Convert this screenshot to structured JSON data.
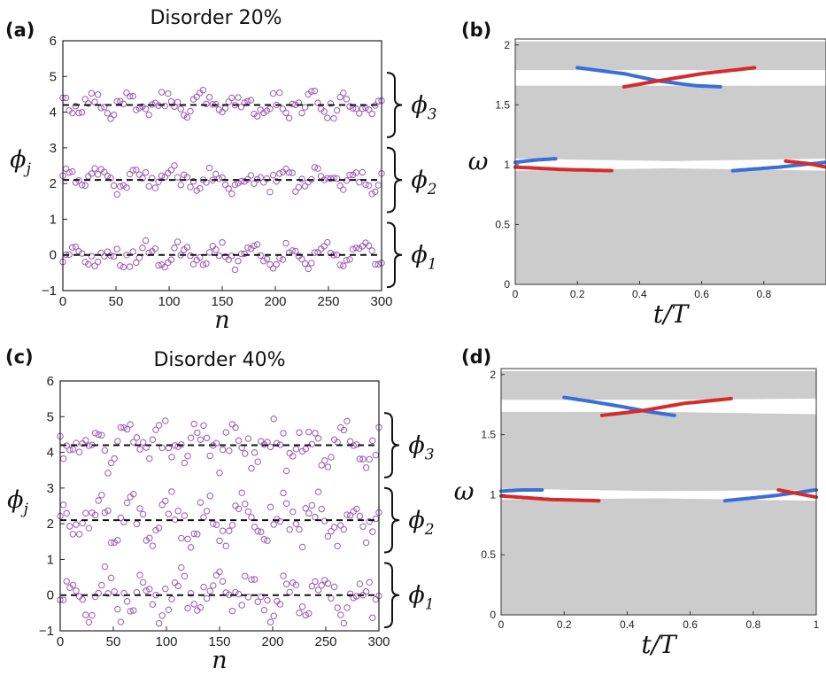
{
  "figure": {
    "panels": [
      "(a)",
      "(b)",
      "(c)",
      "(d)"
    ]
  },
  "chart_data": [
    {
      "panel": "(a)",
      "type": "scatter",
      "title": "Disorder 20%",
      "xlabel": "n",
      "ylabel": "ϕj",
      "xlim": [
        0,
        300
      ],
      "ylim": [
        -1,
        6
      ],
      "xticks": [
        "0",
        "50",
        "100",
        "150",
        "200",
        "250",
        "300"
      ],
      "yticks": [
        "-1",
        "0",
        "1",
        "2",
        "3",
        "4",
        "5",
        "6"
      ],
      "marker_color": "#9b59b6",
      "reference_color": "#111111",
      "reference_lines": [
        {
          "label": "ϕ1",
          "y": 0
        },
        {
          "label": "ϕ2",
          "y": 2.1
        },
        {
          "label": "ϕ3",
          "y": 4.2
        }
      ],
      "disorder": 0.2,
      "n_points": 100,
      "x_step": 3,
      "note": "Each group: ~100 points scattered within ±20% of the ϕ spacing (~2.1) around its reference line"
    },
    {
      "panel": "(b)",
      "type": "line",
      "xlabel": "t/T",
      "ylabel": "ω",
      "xlim": [
        0,
        1
      ],
      "ylim": [
        0,
        2.05
      ],
      "xticks": [
        "0",
        "0.2",
        "0.4",
        "0.6",
        "0.8"
      ],
      "yticks": [
        "0",
        "0.5",
        "1",
        "1.5",
        "2"
      ],
      "band_color": "#cccccc",
      "gaps": [
        {
          "lower": [
            [
              0,
              1.66
            ],
            [
              0.5,
              1.66
            ],
            [
              1,
              1.66
            ]
          ],
          "upper": [
            [
              0,
              1.79
            ],
            [
              0.5,
              1.79
            ],
            [
              1,
              1.79
            ]
          ]
        },
        {
          "lower": [
            [
              0,
              0.95
            ],
            [
              0.5,
              0.97
            ],
            [
              1,
              0.95
            ]
          ],
          "upper": [
            [
              0,
              1.05
            ],
            [
              0.5,
              1.03
            ],
            [
              1,
              1.05
            ]
          ]
        }
      ],
      "series": [
        {
          "color": "#3a6fd9",
          "points": [
            [
              0.2,
              1.81
            ],
            [
              0.35,
              1.76
            ],
            [
              0.46,
              1.7
            ],
            [
              0.58,
              1.66
            ],
            [
              0.66,
              1.65
            ]
          ]
        },
        {
          "color": "#d62b2b",
          "points": [
            [
              0.35,
              1.65
            ],
            [
              0.46,
              1.7
            ],
            [
              0.6,
              1.76
            ],
            [
              0.77,
              1.81
            ]
          ]
        },
        {
          "color": "#3a6fd9",
          "points": [
            [
              0,
              1.02
            ],
            [
              0.07,
              1.04
            ],
            [
              0.13,
              1.05
            ]
          ]
        },
        {
          "color": "#d62b2b",
          "points": [
            [
              0,
              0.98
            ],
            [
              0.15,
              0.96
            ],
            [
              0.31,
              0.95
            ]
          ]
        },
        {
          "color": "#3a6fd9",
          "points": [
            [
              0.7,
              0.95
            ],
            [
              0.85,
              0.98
            ],
            [
              1,
              1.02
            ]
          ]
        },
        {
          "color": "#d62b2b",
          "points": [
            [
              0.87,
              1.03
            ],
            [
              0.94,
              1.01
            ],
            [
              1,
              0.98
            ]
          ]
        }
      ]
    },
    {
      "panel": "(c)",
      "type": "scatter",
      "title": "Disorder 40%",
      "xlabel": "n",
      "ylabel": "ϕj",
      "xlim": [
        0,
        300
      ],
      "ylim": [
        -1,
        6
      ],
      "xticks": [
        "0",
        "50",
        "100",
        "150",
        "200",
        "250",
        "300"
      ],
      "yticks": [
        "-1",
        "0",
        "1",
        "2",
        "3",
        "4",
        "5",
        "6"
      ],
      "marker_color": "#9b59b6",
      "reference_color": "#111111",
      "reference_lines": [
        {
          "label": "ϕ1",
          "y": 0
        },
        {
          "label": "ϕ2",
          "y": 2.1
        },
        {
          "label": "ϕ3",
          "y": 4.2
        }
      ],
      "disorder": 0.4,
      "n_points": 100,
      "x_step": 3,
      "note": "Each group: ~100 points scattered within ±40% of the ϕ spacing (~2.1) around its reference line"
    },
    {
      "panel": "(d)",
      "type": "line",
      "xlabel": "t/T",
      "ylabel": "ω",
      "xlim": [
        0,
        1
      ],
      "ylim": [
        0,
        2.05
      ],
      "xticks": [
        "0",
        "0.2",
        "0.4",
        "0.6",
        "0.8",
        "1"
      ],
      "yticks": [
        "0",
        "0.5",
        "1",
        "1.5",
        "2"
      ],
      "band_color": "#cccccc",
      "gaps": [
        {
          "lower": [
            [
              0,
              1.69
            ],
            [
              0.5,
              1.69
            ],
            [
              1,
              1.67
            ]
          ],
          "upper": [
            [
              0,
              1.79
            ],
            [
              0.5,
              1.79
            ],
            [
              1,
              1.8
            ]
          ]
        },
        {
          "lower": [
            [
              0,
              0.96
            ],
            [
              0.5,
              0.97
            ],
            [
              1,
              0.95
            ]
          ],
          "upper": [
            [
              0,
              1.05
            ],
            [
              0.5,
              1.03
            ],
            [
              1,
              1.04
            ]
          ]
        }
      ],
      "series": [
        {
          "color": "#3a6fd9",
          "points": [
            [
              0.2,
              1.81
            ],
            [
              0.3,
              1.77
            ],
            [
              0.39,
              1.73
            ],
            [
              0.47,
              1.69
            ],
            [
              0.55,
              1.66
            ]
          ]
        },
        {
          "color": "#d62b2b",
          "points": [
            [
              0.32,
              1.66
            ],
            [
              0.45,
              1.7
            ],
            [
              0.58,
              1.76
            ],
            [
              0.73,
              1.8
            ]
          ]
        },
        {
          "color": "#3a6fd9",
          "points": [
            [
              0,
              1.03
            ],
            [
              0.07,
              1.04
            ],
            [
              0.13,
              1.04
            ]
          ]
        },
        {
          "color": "#d62b2b",
          "points": [
            [
              0,
              0.99
            ],
            [
              0.16,
              0.96
            ],
            [
              0.31,
              0.95
            ]
          ]
        },
        {
          "color": "#3a6fd9",
          "points": [
            [
              0.71,
              0.95
            ],
            [
              0.86,
              0.99
            ],
            [
              1,
              1.04
            ]
          ]
        },
        {
          "color": "#d62b2b",
          "points": [
            [
              0.88,
              1.04
            ],
            [
              0.94,
              1.01
            ],
            [
              1,
              0.98
            ]
          ]
        }
      ]
    }
  ]
}
